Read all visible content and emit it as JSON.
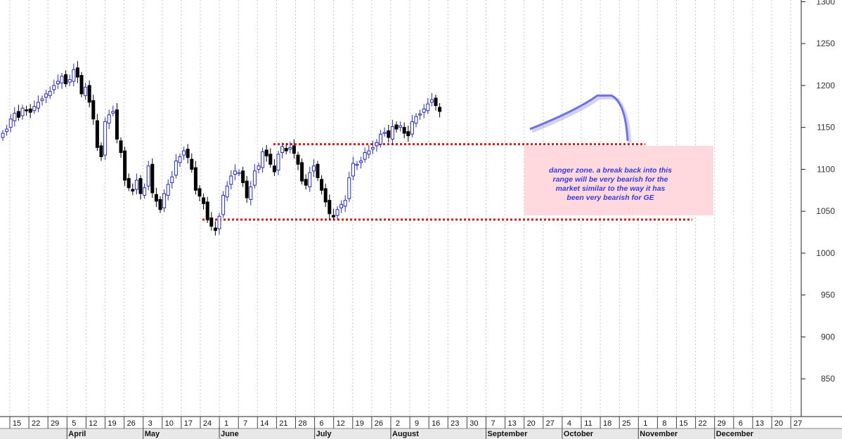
{
  "chart_data": {
    "type": "candlestick",
    "y_ticks": [
      850,
      900,
      950,
      1000,
      1050,
      1100,
      1150,
      1200,
      1250,
      1300
    ],
    "ylim": [
      805,
      1302
    ],
    "grid": "vertical dotted",
    "date_labels": [
      "15",
      "22",
      "29",
      "5",
      "12",
      "19",
      "26",
      "3",
      "10",
      "17",
      "24",
      "1",
      "7",
      "14",
      "21",
      "28",
      "6",
      "12",
      "19",
      "26",
      "2",
      "9",
      "16",
      "23",
      "30",
      "7",
      "13",
      "20",
      "27",
      "4",
      "11",
      "18",
      "25",
      "1",
      "8",
      "15",
      "22",
      "29",
      "6",
      "13",
      "20",
      "27"
    ],
    "months": [
      "April",
      "May",
      "June",
      "July",
      "August",
      "September",
      "October",
      "November",
      "December"
    ],
    "close": [
      1143,
      1148,
      1160,
      1167,
      1162,
      1173,
      1170,
      1168,
      1175,
      1180,
      1184,
      1190,
      1193,
      1200,
      1205,
      1211,
      1202,
      1207,
      1219,
      1210,
      1190,
      1198,
      1180,
      1160,
      1126,
      1115,
      1157,
      1165,
      1169,
      1136,
      1120,
      1087,
      1078,
      1074,
      1087,
      1071,
      1078,
      1104,
      1072,
      1062,
      1052,
      1071,
      1082,
      1091,
      1110,
      1115,
      1122,
      1114,
      1100,
      1075,
      1068,
      1059,
      1040,
      1032,
      1027,
      1044,
      1069,
      1080,
      1092,
      1098,
      1096,
      1084,
      1066,
      1079,
      1098,
      1104,
      1121,
      1116,
      1106,
      1097,
      1118,
      1127,
      1122,
      1126,
      1119,
      1106,
      1086,
      1081,
      1096,
      1104,
      1090,
      1075,
      1061,
      1047,
      1043,
      1052,
      1058,
      1063,
      1090,
      1107,
      1106,
      1110,
      1120,
      1122,
      1126,
      1132,
      1142,
      1144,
      1138,
      1151,
      1148,
      1152,
      1143,
      1140,
      1157,
      1163,
      1166,
      1172,
      1178,
      1183,
      1176,
      1169
    ],
    "annotations": {
      "danger_zone": [
        "danger zone.  a break back into this",
        "range will be very bearish for the",
        "market similar to the way it has",
        "been very bearish for GE"
      ],
      "support_level": 1040,
      "resistance_level": 1130
    }
  },
  "colors": {
    "up": "#2a2ab0",
    "down": "#000000",
    "dotted_line": "#d11a1a",
    "zone_fill": "#ffd9dd",
    "arc": "#6f6ff2",
    "note": "#3a3ad8"
  }
}
